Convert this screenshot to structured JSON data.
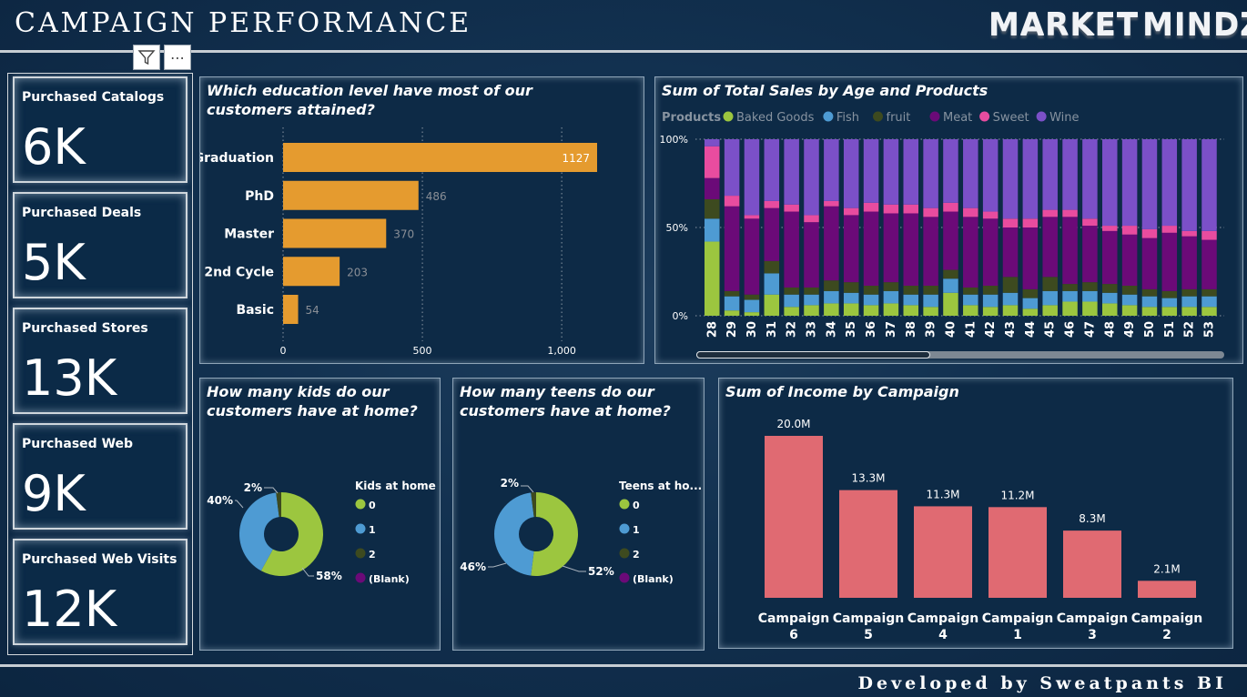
{
  "header": {
    "title": "CAMPAIGN PERFORMANCE",
    "brand_left": "MARKET",
    "brand_right": "MINDZ"
  },
  "footer": {
    "text": "Developed by Sweatpants BI"
  },
  "icons": {
    "filter": "filter-icon",
    "more": "more-options-icon",
    "bolt": "lightning-bolt-icon"
  },
  "kpis": [
    {
      "label": "Purchased Catalogs",
      "value": "6K"
    },
    {
      "label": "Purchased Deals",
      "value": "5K"
    },
    {
      "label": "Purchased Stores",
      "value": "13K"
    },
    {
      "label": "Purchased Web",
      "value": "9K"
    },
    {
      "label": "Purchased Web Visits",
      "value": "12K"
    }
  ],
  "chart_data": [
    {
      "id": "education",
      "type": "bar",
      "orientation": "horizontal",
      "title": "Which education level have most of our customers attained?",
      "categories": [
        "Graduation",
        "PhD",
        "Master",
        "2nd Cycle",
        "Basic"
      ],
      "values": [
        1127,
        486,
        370,
        203,
        54
      ],
      "xlim": [
        0,
        1127
      ],
      "xticks": [
        0,
        500,
        1000
      ],
      "xtick_labels": [
        "0",
        "500",
        "1,000"
      ],
      "color": "#e59b2f",
      "grid": "vertical dotted"
    },
    {
      "id": "age_products",
      "type": "bar",
      "stacked": "100%",
      "title": "Sum of Total Sales by Age and Products",
      "legend_title": "Products",
      "legend_position": "top",
      "categories": [
        "28",
        "29",
        "30",
        "31",
        "32",
        "33",
        "34",
        "35",
        "36",
        "37",
        "38",
        "39",
        "40",
        "41",
        "42",
        "43",
        "44",
        "45",
        "46",
        "47",
        "48",
        "49",
        "50",
        "51",
        "52",
        "53"
      ],
      "yticks": [
        "0%",
        "50%",
        "100%"
      ],
      "series": [
        {
          "name": "Baked Goods",
          "color": "#9cc63f",
          "values": [
            42,
            3,
            2,
            12,
            5,
            6,
            7,
            7,
            6,
            7,
            6,
            5,
            13,
            6,
            5,
            6,
            4,
            6,
            8,
            8,
            7,
            6,
            5,
            5,
            5,
            5
          ]
        },
        {
          "name": "Fish",
          "color": "#4e9bd3",
          "values": [
            13,
            8,
            7,
            12,
            7,
            6,
            7,
            6,
            6,
            7,
            6,
            7,
            8,
            6,
            7,
            7,
            6,
            8,
            6,
            6,
            6,
            6,
            6,
            5,
            6,
            6
          ]
        },
        {
          "name": "fruit",
          "color": "#3d4a1f",
          "values": [
            11,
            3,
            3,
            7,
            4,
            4,
            6,
            6,
            5,
            5,
            5,
            5,
            5,
            4,
            5,
            9,
            5,
            8,
            4,
            5,
            5,
            5,
            4,
            4,
            4,
            4
          ]
        },
        {
          "name": "Meat",
          "color": "#6b0a78",
          "values": [
            12,
            48,
            43,
            30,
            43,
            37,
            42,
            38,
            42,
            39,
            41,
            39,
            33,
            40,
            38,
            28,
            35,
            34,
            38,
            32,
            30,
            29,
            29,
            33,
            30,
            28
          ]
        },
        {
          "name": "Sweet",
          "color": "#e84c9f",
          "values": [
            18,
            6,
            2,
            4,
            4,
            4,
            3,
            4,
            5,
            5,
            5,
            5,
            5,
            5,
            4,
            5,
            5,
            4,
            4,
            4,
            3,
            5,
            5,
            4,
            3,
            5
          ]
        },
        {
          "name": "Wine",
          "color": "#7b50c8",
          "values": [
            4,
            32,
            43,
            35,
            37,
            43,
            35,
            39,
            36,
            37,
            37,
            39,
            36,
            39,
            41,
            45,
            45,
            40,
            40,
            45,
            49,
            49,
            51,
            49,
            52,
            52
          ]
        }
      ]
    },
    {
      "id": "kids",
      "type": "pie",
      "donut": true,
      "title": "How many kids do our customers have at home?",
      "legend_title": "Kids at home",
      "labels": [
        "0",
        "1",
        "2",
        "(Blank)"
      ],
      "values": [
        58,
        40,
        2,
        0
      ],
      "value_labels": [
        "58%",
        "40%",
        "2%",
        ""
      ],
      "colors": [
        "#9cc63f",
        "#4e9bd3",
        "#3d4a1f",
        "#6b0a78"
      ]
    },
    {
      "id": "teens",
      "type": "pie",
      "donut": true,
      "title": "How many teens do our customers have at home?",
      "legend_title": "Teens at ho...",
      "labels": [
        "0",
        "1",
        "2",
        "(Blank)"
      ],
      "values": [
        52,
        46,
        2,
        0
      ],
      "value_labels": [
        "52%",
        "46%",
        "2%",
        ""
      ],
      "colors": [
        "#9cc63f",
        "#4e9bd3",
        "#3d4a1f",
        "#6b0a78"
      ]
    },
    {
      "id": "income",
      "type": "bar",
      "title": "Sum of Income by Campaign",
      "categories": [
        "Campaign 6",
        "Campaign 5",
        "Campaign 4",
        "Campaign 1",
        "Campaign 3",
        "Campaign 2"
      ],
      "category_lines": [
        [
          "Campaign",
          "6"
        ],
        [
          "Campaign",
          "5"
        ],
        [
          "Campaign",
          "4"
        ],
        [
          "Campaign",
          "1"
        ],
        [
          "Campaign",
          "3"
        ],
        [
          "Campaign",
          "2"
        ]
      ],
      "values": [
        20.0,
        13.3,
        11.3,
        11.2,
        8.3,
        2.1
      ],
      "value_labels": [
        "20.0M",
        "13.3M",
        "11.3M",
        "11.2M",
        "8.3M",
        "2.1M"
      ],
      "ylim": [
        0,
        20
      ],
      "color": "#e06a72"
    }
  ]
}
